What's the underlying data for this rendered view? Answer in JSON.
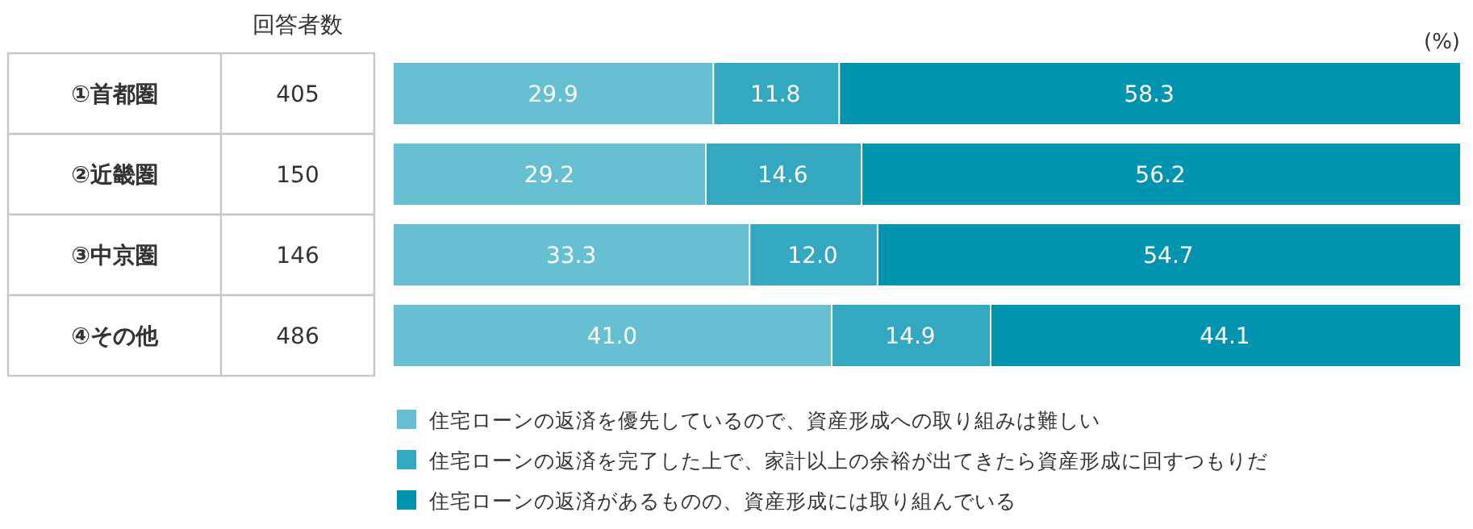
{
  "chart_data": {
    "type": "bar",
    "orientation": "horizontal",
    "stacked": true,
    "xlabel": "(%)",
    "xlim": [
      0,
      100
    ],
    "legend": "bottom",
    "categories": [
      "①首都圏",
      "②近畿圏",
      "③中京圏",
      "④その他"
    ],
    "series": [
      {
        "name": "住宅ローンの返済を優先しているので、資産形成への取り組みは難しい",
        "color": "#67c0d2",
        "values": [
          29.9,
          29.2,
          33.3,
          41.0
        ],
        "value_labels": [
          "29.9",
          "29.2",
          "33.3",
          "41.0"
        ]
      },
      {
        "name": "住宅ローンの返済を完了した上で、家計以上の余裕が出てきたら資産形成に回すつもりだ",
        "color": "#34a8c1",
        "values": [
          11.8,
          14.6,
          12.0,
          14.9
        ],
        "value_labels": [
          "11.8",
          "14.6",
          "12.0",
          "14.9"
        ]
      },
      {
        "name": "住宅ローンの返済があるものの、資産形成には取り組んでいる",
        "color": "#0094b1",
        "values": [
          58.3,
          56.2,
          54.7,
          44.1
        ],
        "value_labels": [
          "58.3",
          "56.2",
          "54.7",
          "44.1"
        ]
      }
    ],
    "annotations": [
      "回答者数",
      "405",
      "150",
      "146",
      "486"
    ]
  }
}
